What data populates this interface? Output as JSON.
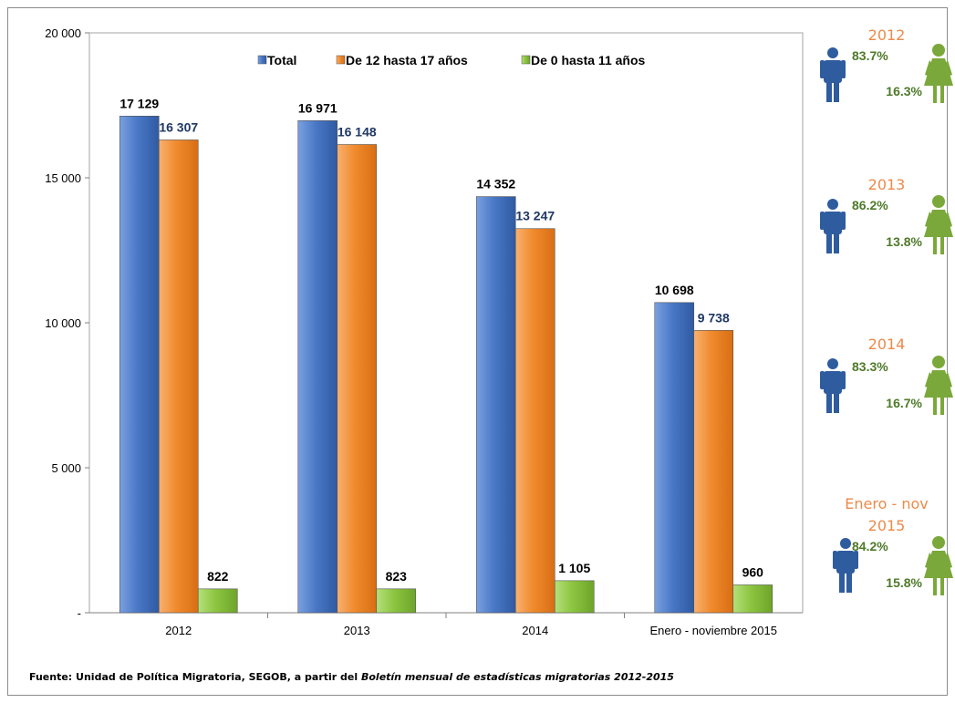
{
  "chart_data": {
    "type": "bar",
    "categories": [
      "2012",
      "2013",
      "2014",
      "Enero - noviembre 2015"
    ],
    "series": [
      {
        "name": "Total",
        "values": [
          17129,
          16971,
          14352,
          10698
        ],
        "labels": [
          "17 129",
          "16 971",
          "14 352",
          "10 698"
        ],
        "color": "#4a78c6",
        "label_color": "#000000"
      },
      {
        "name": "De 12 hasta 17 años",
        "values": [
          16307,
          16148,
          13247,
          9738
        ],
        "labels": [
          "16 307",
          "16 148",
          "13 247",
          "9 738"
        ],
        "color": "#f08a2c",
        "label_color": "#1f3864"
      },
      {
        "name": "De 0 hasta 11 años",
        "values": [
          822,
          823,
          1105,
          960
        ],
        "labels": [
          "822",
          "823",
          "1 105",
          "960"
        ],
        "color": "#8cc540",
        "label_color": "#000000"
      }
    ],
    "ylim": [
      0,
      20000
    ],
    "yticks": [
      0,
      5000,
      10000,
      15000,
      20000
    ],
    "ytick_labels": [
      "-",
      "5 000",
      "10 000",
      "15 000",
      "20 000"
    ],
    "legend_position": "top",
    "grid": false
  },
  "gender_panel": [
    {
      "year": "2012",
      "male_pct": "83.7%",
      "female_pct": "16.3%"
    },
    {
      "year": "2013",
      "male_pct": "86.2%",
      "female_pct": "13.8%"
    },
    {
      "year": "2014",
      "male_pct": "83.3%",
      "female_pct": "16.7%"
    },
    {
      "year": "Enero - nov 2015",
      "male_pct": "84.2%",
      "female_pct": "15.8%"
    }
  ],
  "colors": {
    "male": "#2e5c9e",
    "female": "#7aa83a",
    "year": "#ec8a4a"
  },
  "source": {
    "prefix": "Fuente: Unidad de Política Migratoria, SEGOB, a partir del ",
    "italic": "Boletín mensual de estadísticas migratorias 2012-2015"
  }
}
